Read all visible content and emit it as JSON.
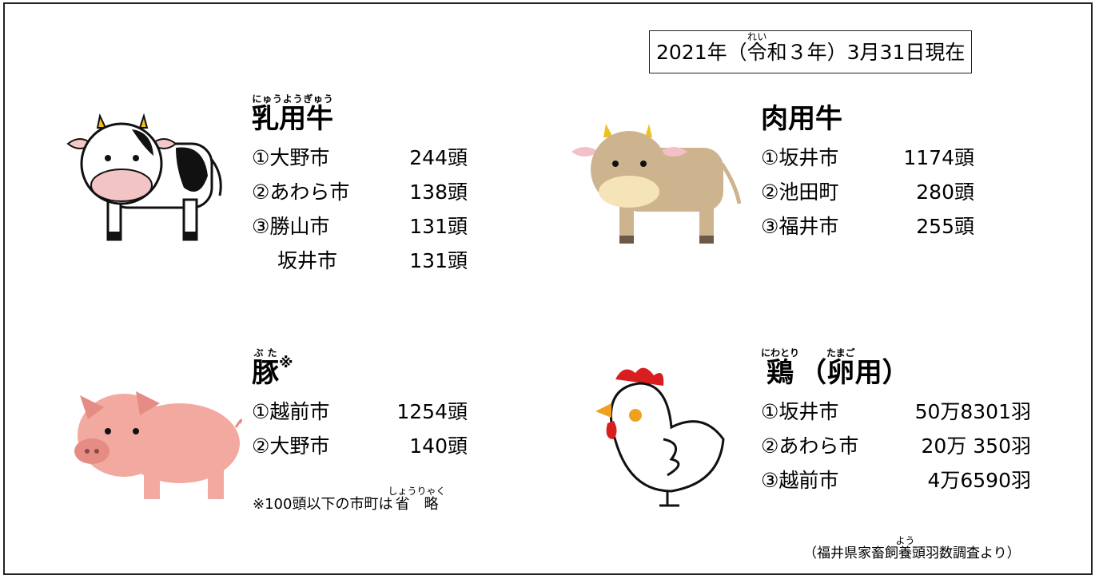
{
  "date": {
    "before": "2021年（",
    "base": "令",
    "ruby": "れい",
    "after": "和３年）3月31日現在"
  },
  "sections": [
    {
      "title": [
        {
          "text": "乳用牛",
          "ruby": "にゅうようぎゅう"
        }
      ],
      "rows": [
        [
          "①大野市",
          "244頭"
        ],
        [
          "②あわら市",
          "138頭"
        ],
        [
          "③勝山市",
          "131頭"
        ],
        [
          "坂井市",
          "131頭"
        ]
      ]
    },
    {
      "title": [
        {
          "text": "肉用牛"
        }
      ],
      "rows": [
        [
          "①坂井市",
          "1174頭"
        ],
        [
          "②池田町",
          "280頭"
        ],
        [
          "③福井市",
          "255頭"
        ]
      ]
    },
    {
      "title": [
        {
          "text": "豚",
          "ruby": "ぶた"
        },
        {
          "text": "※"
        }
      ],
      "rows": [
        [
          "①越前市",
          "1254頭"
        ],
        [
          "②大野市",
          "140頭"
        ]
      ]
    },
    {
      "title": [
        {
          "text": "鶏",
          "ruby": "にわとり"
        },
        {
          "text": "（"
        },
        {
          "text": "卵",
          "ruby": "たまご"
        },
        {
          "text": "用）"
        }
      ],
      "rows": [
        [
          "①坂井市",
          "50万8301羽"
        ],
        [
          "②あわら市",
          "20万 350羽"
        ],
        [
          "③越前市",
          "4万6590羽"
        ]
      ]
    }
  ],
  "note": {
    "before": "※100頭以下の市町は",
    "base": "省略",
    "ruby": "しょうりゃく"
  },
  "source": {
    "before": "（福井県家畜飼",
    "base": "養",
    "ruby": "よう",
    "after": "頭羽数調査より）"
  }
}
